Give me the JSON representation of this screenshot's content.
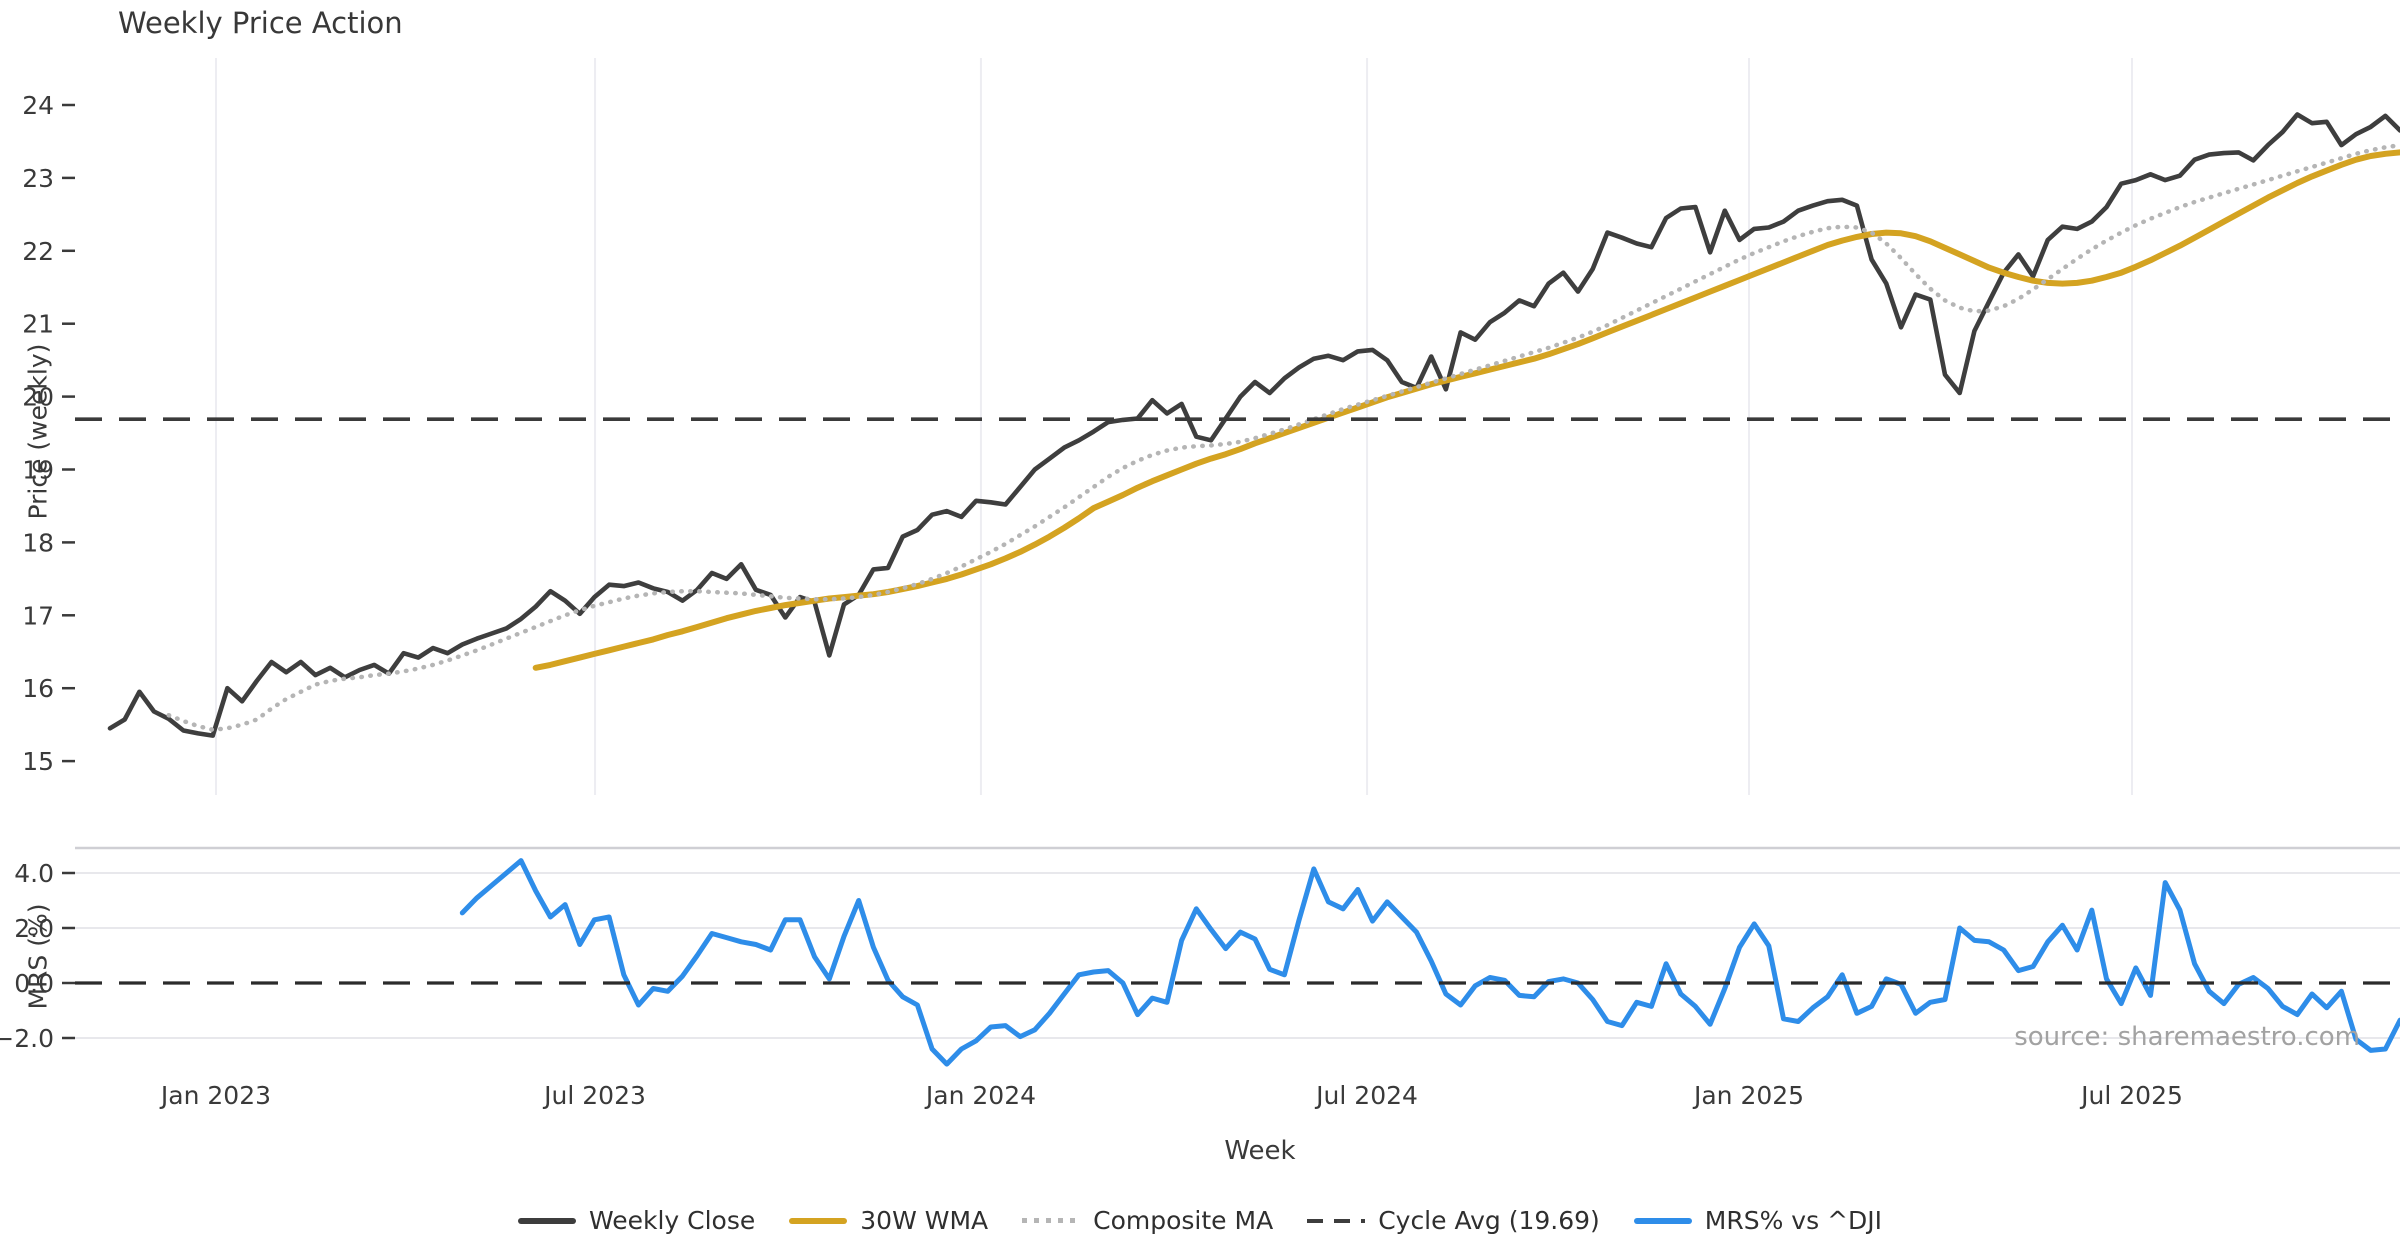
{
  "title": "Weekly Price Action",
  "source": "source: sharemaestro.com",
  "x_axis": {
    "label": "Week",
    "ticks": [
      {
        "label": "Jan 2023",
        "week": 7.22
      },
      {
        "label": "Jul 2023",
        "week": 33.04
      },
      {
        "label": "Jan 2024",
        "week": 59.33
      },
      {
        "label": "Jul 2024",
        "week": 85.63
      },
      {
        "label": "Jan 2025",
        "week": 111.65
      },
      {
        "label": "Jul 2025",
        "week": 137.74
      }
    ]
  },
  "price_axis": {
    "label": "Price (weekly)",
    "ticks": [
      15,
      16,
      17,
      18,
      19,
      20,
      21,
      22,
      23,
      24
    ]
  },
  "mrs_axis": {
    "label": "MRS (%)",
    "ticks": [
      {
        "label": "4.0",
        "value": 4
      },
      {
        "label": "2.0",
        "value": 2
      },
      {
        "label": "0.0",
        "value": 0
      },
      {
        "label": "−2.0",
        "value": -2
      }
    ]
  },
  "legend": {
    "items": [
      {
        "label": "Weekly Close",
        "style": "solid",
        "color": "#3d3d3d"
      },
      {
        "label": "30W WMA",
        "style": "solid",
        "color": "#d4a321"
      },
      {
        "label": "Composite MA",
        "style": "dotted",
        "color": "#b5b5b5"
      },
      {
        "label": "Cycle Avg (19.69)",
        "style": "dashed",
        "color": "#3d3d3d"
      },
      {
        "label": "MRS% vs ^DJI",
        "style": "solid",
        "color": "#2e8de9"
      }
    ]
  },
  "colors": {
    "close": "#3e3e3e",
    "wma": "#d4a321",
    "composite": "#b5b5b5",
    "cycle_avg": "#3a3a3a",
    "mrs": "#2e8de9",
    "grid_vertical": "#ededf2",
    "grid_horizontal": "#e8e8ec",
    "panel_spine": "#cfcfd4",
    "tick": "#3a3a3a"
  },
  "chart_data": {
    "type": "line",
    "panels": [
      {
        "id": "price",
        "ylabel": "Price (weekly)",
        "ylim": [
          14.9,
          24.7
        ],
        "grid": "vertical"
      },
      {
        "id": "mrs",
        "ylabel": "MRS (%)",
        "ylim": [
          -3.3,
          4.9
        ],
        "grid": "horizontal"
      }
    ],
    "cycle_avg": 19.69,
    "series": [
      {
        "name": "Weekly Close",
        "panel": "price",
        "style": "solid",
        "color": "#3e3e3e",
        "width": 4.6,
        "start_week": 0,
        "values": [
          15.45,
          15.57,
          15.95,
          15.68,
          15.58,
          15.42,
          15.38,
          15.35,
          16.0,
          15.82,
          16.1,
          16.36,
          16.22,
          16.36,
          16.18,
          16.28,
          16.15,
          16.25,
          16.32,
          16.2,
          16.48,
          16.42,
          16.55,
          16.48,
          16.6,
          16.68,
          16.75,
          16.82,
          16.95,
          17.12,
          17.33,
          17.2,
          17.02,
          17.25,
          17.42,
          17.4,
          17.45,
          17.37,
          17.32,
          17.2,
          17.35,
          17.58,
          17.5,
          17.7,
          17.35,
          17.28,
          16.97,
          17.25,
          17.18,
          16.45,
          17.15,
          17.28,
          17.63,
          17.65,
          18.08,
          18.17,
          18.38,
          18.43,
          18.35,
          18.57,
          18.55,
          18.52,
          18.76,
          19.0,
          19.15,
          19.3,
          19.4,
          19.52,
          19.65,
          19.68,
          19.7,
          19.95,
          19.77,
          19.9,
          19.45,
          19.4,
          19.7,
          20.0,
          20.2,
          20.05,
          20.25,
          20.4,
          20.52,
          20.56,
          20.5,
          20.62,
          20.64,
          20.5,
          20.2,
          20.12,
          20.55,
          20.1,
          20.88,
          20.78,
          21.02,
          21.15,
          21.32,
          21.24,
          21.55,
          21.7,
          21.44,
          21.75,
          22.25,
          22.18,
          22.1,
          22.05,
          22.45,
          22.58,
          22.6,
          21.98,
          22.55,
          22.15,
          22.3,
          22.32,
          22.4,
          22.55,
          22.62,
          22.68,
          22.7,
          22.62,
          21.88,
          21.55,
          20.95,
          21.4,
          21.33,
          20.3,
          20.05,
          20.9,
          21.3,
          21.7,
          21.95,
          21.65,
          22.15,
          22.33,
          22.3,
          22.4,
          22.6,
          22.92,
          22.97,
          23.05,
          22.97,
          23.03,
          23.25,
          23.32,
          23.34,
          23.35,
          23.24,
          23.45,
          23.63,
          23.87,
          23.75,
          23.77,
          23.45,
          23.6,
          23.7,
          23.85,
          23.65
        ]
      },
      {
        "name": "30W WMA",
        "panel": "price",
        "style": "solid",
        "color": "#d4a321",
        "width": 6,
        "start_week": 29,
        "values": [
          16.28,
          16.32,
          16.37,
          16.42,
          16.47,
          16.52,
          16.57,
          16.62,
          16.67,
          16.73,
          16.78,
          16.84,
          16.9,
          16.96,
          17.01,
          17.06,
          17.1,
          17.14,
          17.17,
          17.2,
          17.23,
          17.25,
          17.27,
          17.29,
          17.32,
          17.36,
          17.4,
          17.45,
          17.5,
          17.56,
          17.63,
          17.7,
          17.78,
          17.87,
          17.97,
          18.08,
          18.2,
          18.33,
          18.47,
          18.56,
          18.65,
          18.75,
          18.84,
          18.92,
          19.0,
          19.08,
          19.15,
          19.21,
          19.28,
          19.36,
          19.43,
          19.5,
          19.57,
          19.64,
          19.71,
          19.78,
          19.85,
          19.92,
          19.99,
          20.05,
          20.11,
          20.17,
          20.22,
          20.27,
          20.32,
          20.37,
          20.42,
          20.47,
          20.52,
          20.58,
          20.65,
          20.72,
          20.8,
          20.88,
          20.96,
          21.04,
          21.12,
          21.2,
          21.28,
          21.36,
          21.44,
          21.52,
          21.6,
          21.68,
          21.76,
          21.84,
          21.92,
          22.0,
          22.08,
          22.14,
          22.19,
          22.23,
          22.25,
          22.24,
          22.2,
          22.13,
          22.04,
          21.95,
          21.86,
          21.77,
          21.7,
          21.64,
          21.59,
          21.56,
          21.55,
          21.56,
          21.59,
          21.64,
          21.7,
          21.78,
          21.87,
          21.97,
          22.07,
          22.18,
          22.29,
          22.4,
          22.51,
          22.62,
          22.73,
          22.83,
          22.93,
          23.02,
          23.1,
          23.18,
          23.25,
          23.3,
          23.33,
          23.35
        ]
      },
      {
        "name": "Composite MA",
        "panel": "price",
        "style": "dotted",
        "color": "#b5b5b5",
        "width": 4.5,
        "start_week": 4,
        "values": [
          15.63,
          15.55,
          15.48,
          15.43,
          15.45,
          15.5,
          15.57,
          15.72,
          15.85,
          15.95,
          16.05,
          16.1,
          16.13,
          16.15,
          16.18,
          16.2,
          16.23,
          16.27,
          16.32,
          16.38,
          16.45,
          16.52,
          16.6,
          16.68,
          16.76,
          16.84,
          16.92,
          17.0,
          17.07,
          17.13,
          17.18,
          17.23,
          17.27,
          17.3,
          17.32,
          17.33,
          17.33,
          17.32,
          17.31,
          17.3,
          17.28,
          17.26,
          17.24,
          17.23,
          17.22,
          17.22,
          17.23,
          17.25,
          17.28,
          17.32,
          17.37,
          17.43,
          17.5,
          17.58,
          17.67,
          17.77,
          17.87,
          17.98,
          18.1,
          18.22,
          18.35,
          18.48,
          18.62,
          18.76,
          18.9,
          19.02,
          19.12,
          19.2,
          19.26,
          19.3,
          19.32,
          19.33,
          19.35,
          19.38,
          19.43,
          19.49,
          19.55,
          19.62,
          19.69,
          19.76,
          19.83,
          19.89,
          19.95,
          20.01,
          20.07,
          20.13,
          20.19,
          20.25,
          20.31,
          20.37,
          20.43,
          20.49,
          20.55,
          20.61,
          20.67,
          20.74,
          20.81,
          20.89,
          20.98,
          21.08,
          21.18,
          21.28,
          21.38,
          21.48,
          21.58,
          21.68,
          21.78,
          21.88,
          21.97,
          22.05,
          22.13,
          22.2,
          22.26,
          22.31,
          22.33,
          22.32,
          22.25,
          22.1,
          21.9,
          21.68,
          21.48,
          21.32,
          21.22,
          21.17,
          21.18,
          21.24,
          21.34,
          21.47,
          21.61,
          21.75,
          21.89,
          22.02,
          22.14,
          22.25,
          22.35,
          22.44,
          22.52,
          22.6,
          22.67,
          22.73,
          22.79,
          22.85,
          22.91,
          22.97,
          23.03,
          23.09,
          23.15,
          23.21,
          23.27,
          23.33,
          23.38,
          23.42,
          23.45
        ]
      },
      {
        "name": "Cycle Avg (19.69)",
        "panel": "price",
        "style": "dashed",
        "color": "#3a3a3a",
        "width": 3.6,
        "value": 19.69
      },
      {
        "name": "MRS% vs ^DJI",
        "panel": "mrs",
        "style": "solid",
        "color": "#2e8de9",
        "width": 5,
        "start_week": 24,
        "values": [
          2.55,
          3.1,
          3.55,
          4.0,
          4.45,
          3.35,
          2.4,
          2.85,
          1.4,
          2.3,
          2.4,
          0.3,
          -0.8,
          -0.2,
          -0.3,
          0.25,
          1.0,
          1.8,
          1.65,
          1.5,
          1.4,
          1.2,
          2.3,
          2.3,
          0.95,
          0.15,
          1.7,
          3.0,
          1.3,
          0.1,
          -0.5,
          -0.8,
          -2.4,
          -2.95,
          -2.4,
          -2.1,
          -1.6,
          -1.55,
          -1.95,
          -1.7,
          -1.1,
          -0.4,
          0.3,
          0.4,
          0.45,
          0.0,
          -1.15,
          -0.55,
          -0.7,
          1.55,
          2.7,
          1.95,
          1.25,
          1.85,
          1.6,
          0.5,
          0.3,
          2.3,
          4.15,
          2.95,
          2.7,
          3.4,
          2.25,
          2.95,
          2.4,
          1.85,
          0.8,
          -0.4,
          -0.8,
          -0.1,
          0.2,
          0.1,
          -0.45,
          -0.5,
          0.05,
          0.15,
          0.0,
          -0.6,
          -1.4,
          -1.55,
          -0.7,
          -0.85,
          0.7,
          -0.4,
          -0.85,
          -1.5,
          -0.2,
          1.3,
          2.15,
          1.35,
          -1.3,
          -1.4,
          -0.9,
          -0.5,
          0.3,
          -1.1,
          -0.85,
          0.15,
          -0.05,
          -1.1,
          -0.7,
          -0.6,
          2.0,
          1.55,
          1.5,
          1.2,
          0.45,
          0.6,
          1.5,
          2.1,
          1.2,
          2.65,
          0.15,
          -0.75,
          0.55,
          -0.45,
          3.65,
          2.65,
          0.7,
          -0.3,
          -0.75,
          -0.05,
          0.2,
          -0.2,
          -0.85,
          -1.15,
          -0.4,
          -0.9,
          -0.3,
          -2.05,
          -2.45,
          -2.4,
          -1.35
        ]
      },
      {
        "name": "Zero Line",
        "panel": "mrs",
        "style": "dashed",
        "color": "#2b2b2b",
        "width": 3.2,
        "value": 0.0
      }
    ]
  }
}
